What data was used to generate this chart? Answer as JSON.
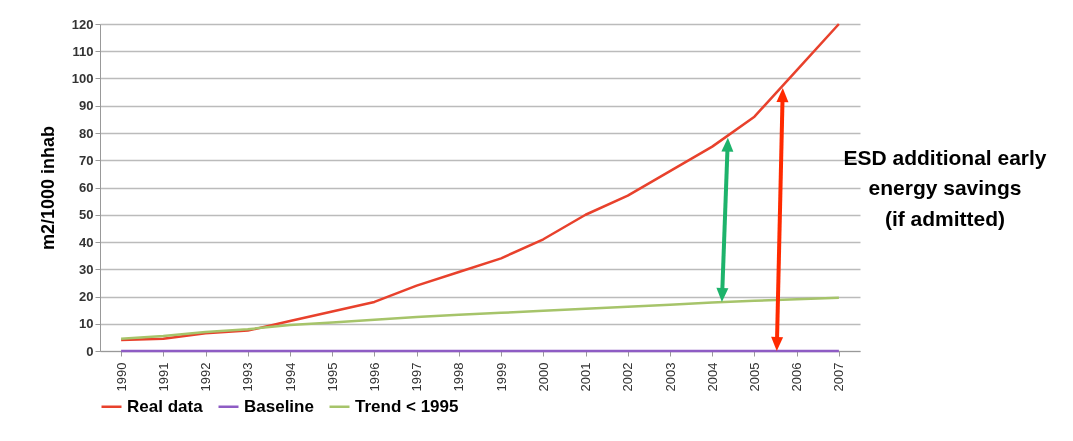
{
  "chart_data": {
    "type": "line",
    "ylabel": "m2/1000 inhab",
    "categories": [
      "1990",
      "1991",
      "1992",
      "1993",
      "1994",
      "1995",
      "1996",
      "1997",
      "1998",
      "1999",
      "2000",
      "2001",
      "2002",
      "2003",
      "2004",
      "2005",
      "2006",
      "2007"
    ],
    "series": [
      {
        "name": "Real data",
        "color": "#e8412c",
        "values": [
          4,
          4.5,
          6.5,
          7.5,
          11,
          14.5,
          18,
          24,
          29,
          34,
          41,
          50,
          57,
          66,
          75,
          86,
          103,
          120
        ]
      },
      {
        "name": "Baseline",
        "color": "#8e5cc4",
        "values": [
          0,
          0,
          0,
          0,
          0,
          0,
          0,
          0,
          0,
          0,
          0,
          0,
          0,
          0,
          0,
          0,
          0,
          0
        ]
      },
      {
        "name": "Trend < 1995",
        "color": "#a6c46a",
        "values": [
          4.5,
          5.5,
          7,
          8,
          9.5,
          10.5,
          11.5,
          12.5,
          13.3,
          14,
          14.8,
          15.5,
          16.2,
          17,
          17.8,
          18.4,
          19,
          19.5
        ]
      }
    ],
    "ylim": [
      0,
      120
    ],
    "yticks": [
      0,
      10,
      20,
      30,
      40,
      50,
      60,
      70,
      80,
      90,
      100,
      110,
      120
    ],
    "grid": "y",
    "legend": "bottom left",
    "marker": "none",
    "line_style": "solid",
    "annotations": [
      "ESD additional early\nenergy savings\n(if admitted)"
    ]
  }
}
